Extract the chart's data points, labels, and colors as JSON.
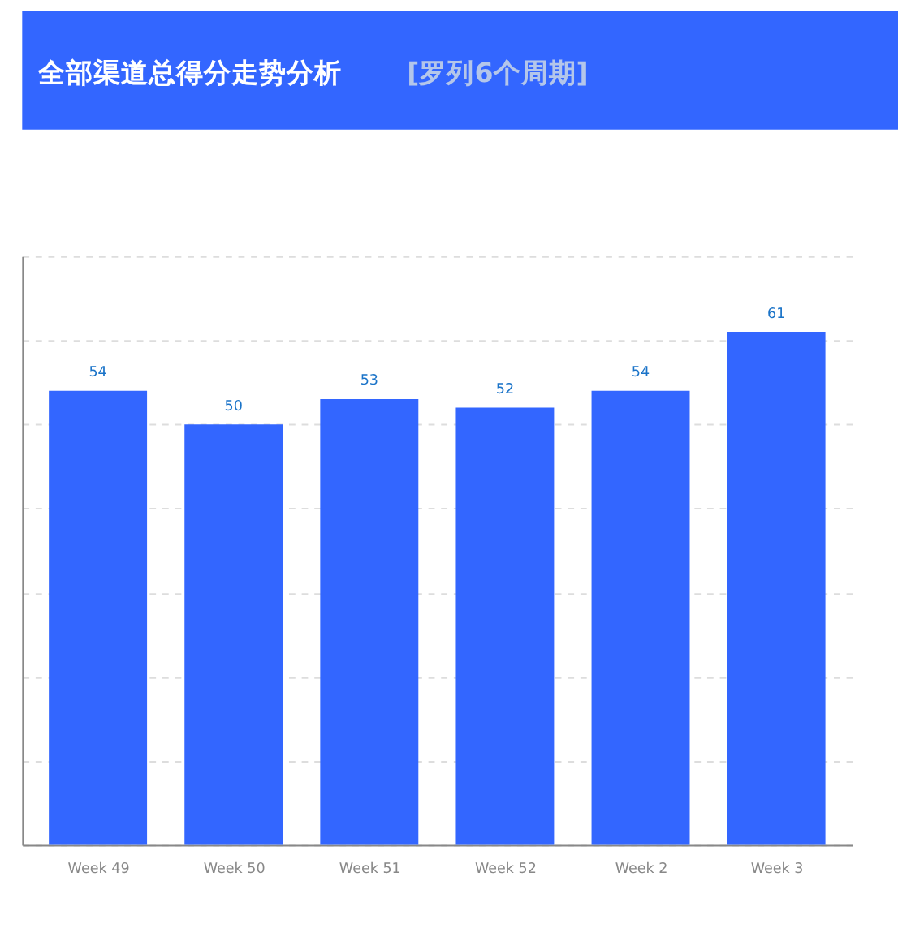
{
  "chart_data": {
    "type": "bar",
    "title": "全部渠道总得分走势分析",
    "subtitle": "[罗列6个周期]",
    "categories": [
      "Week 49",
      "Week 50",
      "Week 51",
      "Week 52",
      "Week 2",
      "Week 3"
    ],
    "values": [
      54,
      50,
      53,
      52,
      54,
      61
    ],
    "color": "#3366ff",
    "ylim": [
      0,
      70
    ],
    "yticks": [
      {
        "value": 0,
        "label": null
      },
      {
        "value": 10,
        "label": null
      },
      {
        "value": 20,
        "label": null
      },
      {
        "value": 30,
        "label": null
      },
      {
        "value": 40,
        "label": null
      },
      {
        "value": 50,
        "label": null
      },
      {
        "value": 60,
        "label": null
      },
      {
        "value": 70,
        "label": null
      }
    ],
    "grid": "y",
    "data_labels": true,
    "tick_labels": "x"
  }
}
